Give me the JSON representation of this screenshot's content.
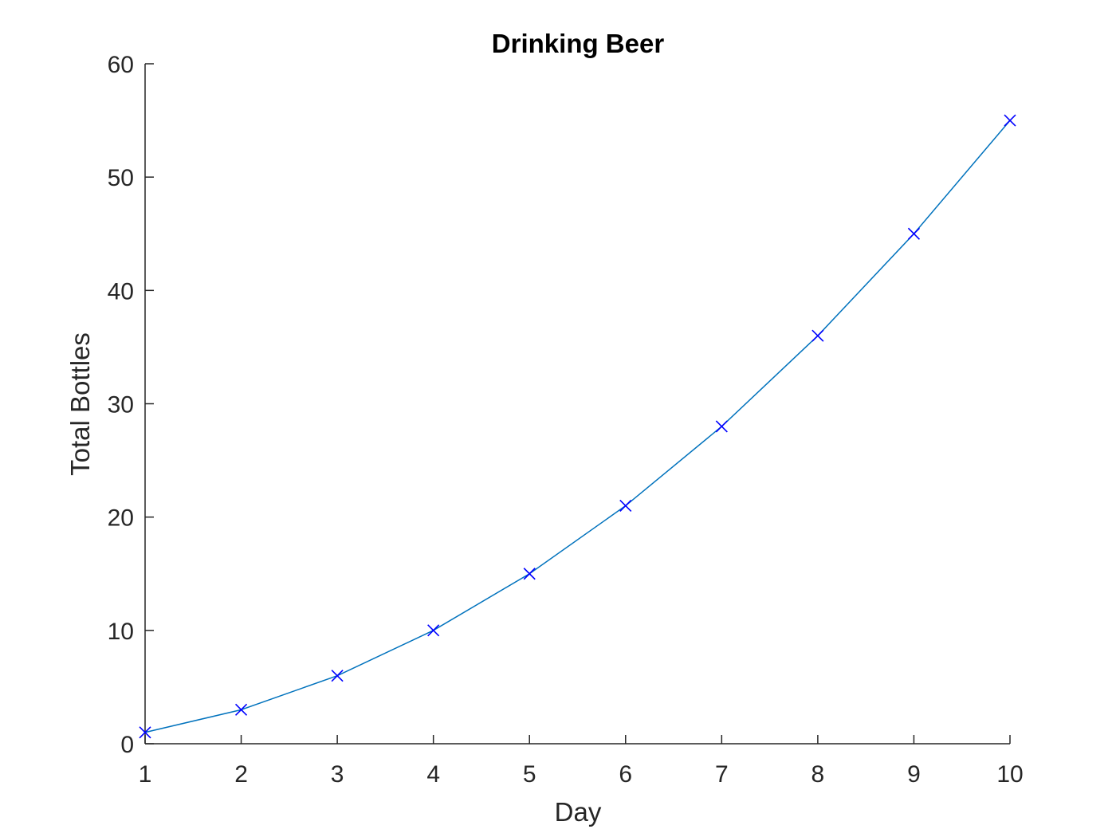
{
  "chart_data": {
    "type": "line",
    "title": "Drinking Beer",
    "xlabel": "Day",
    "ylabel": "Total Bottles",
    "x": [
      1,
      2,
      3,
      4,
      5,
      6,
      7,
      8,
      9,
      10
    ],
    "series": [
      {
        "values": [
          1,
          3,
          6,
          10,
          15,
          21,
          28,
          36,
          45,
          55
        ],
        "line_color": "#0072BD",
        "marker": "x",
        "marker_color": "#0000FF"
      }
    ],
    "xlim": [
      1,
      10
    ],
    "ylim": [
      0,
      60
    ],
    "xticks": [
      "1",
      "2",
      "3",
      "4",
      "5",
      "6",
      "7",
      "8",
      "9",
      "10"
    ],
    "yticks": [
      "0",
      "10",
      "20",
      "30",
      "40",
      "50",
      "60"
    ],
    "grid": false,
    "axis_color": "#262626"
  }
}
